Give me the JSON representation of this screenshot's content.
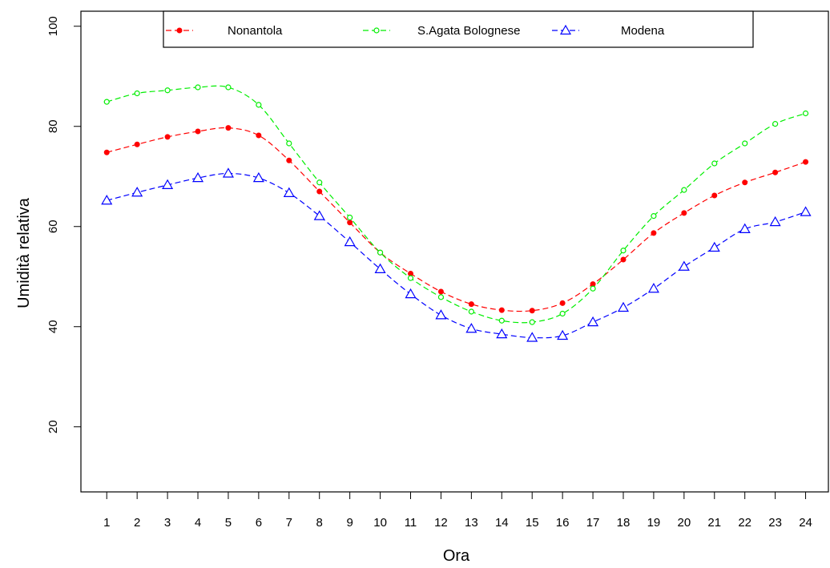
{
  "chart_data": {
    "type": "line",
    "xlabel": "Ora",
    "ylabel": "Umidità relativa",
    "x": [
      1,
      2,
      3,
      4,
      5,
      6,
      7,
      8,
      9,
      10,
      11,
      12,
      13,
      14,
      15,
      16,
      17,
      18,
      19,
      20,
      21,
      22,
      23,
      24
    ],
    "x_tick_labels": [
      "1",
      "2",
      "3",
      "4",
      "5",
      "6",
      "7",
      "8",
      "9",
      "10",
      "11",
      "12",
      "13",
      "14",
      "15",
      "16",
      "17",
      "18",
      "19",
      "20",
      "21",
      "22",
      "23",
      "24"
    ],
    "y_ticks": [
      20,
      40,
      60,
      80,
      100
    ],
    "y_tick_labels": [
      "20",
      "40",
      "60",
      "80",
      "100"
    ],
    "xlim": [
      0.15,
      24.75
    ],
    "ylim": [
      7,
      103
    ],
    "grid": false,
    "legend_position": "top",
    "series": [
      {
        "name": "Nonantola",
        "color": "#ff0000",
        "marker": "filled-circle",
        "values": [
          74.8,
          76.4,
          77.9,
          79.0,
          79.7,
          78.2,
          73.2,
          67.0,
          60.8,
          54.8,
          50.6,
          47.0,
          44.5,
          43.3,
          43.2,
          44.7,
          48.5,
          53.4,
          58.7,
          62.7,
          66.2,
          68.8,
          70.8,
          72.9
        ]
      },
      {
        "name": "S.Agata Bolognese",
        "color": "#00ee00",
        "marker": "open-circle",
        "values": [
          84.9,
          86.6,
          87.2,
          87.8,
          87.8,
          84.3,
          76.6,
          68.8,
          61.8,
          54.8,
          49.7,
          45.9,
          43.0,
          41.2,
          40.9,
          42.6,
          47.6,
          55.2,
          62.1,
          67.3,
          72.6,
          76.6,
          80.5,
          82.6
        ]
      },
      {
        "name": "Modena",
        "color": "#0000ff",
        "marker": "open-triangle",
        "values": [
          65.2,
          66.8,
          68.3,
          69.7,
          70.6,
          69.7,
          66.7,
          62.1,
          56.9,
          51.5,
          46.5,
          42.3,
          39.6,
          38.5,
          37.8,
          38.2,
          40.9,
          43.8,
          47.6,
          52.0,
          55.8,
          59.5,
          60.9,
          62.9
        ]
      }
    ]
  }
}
